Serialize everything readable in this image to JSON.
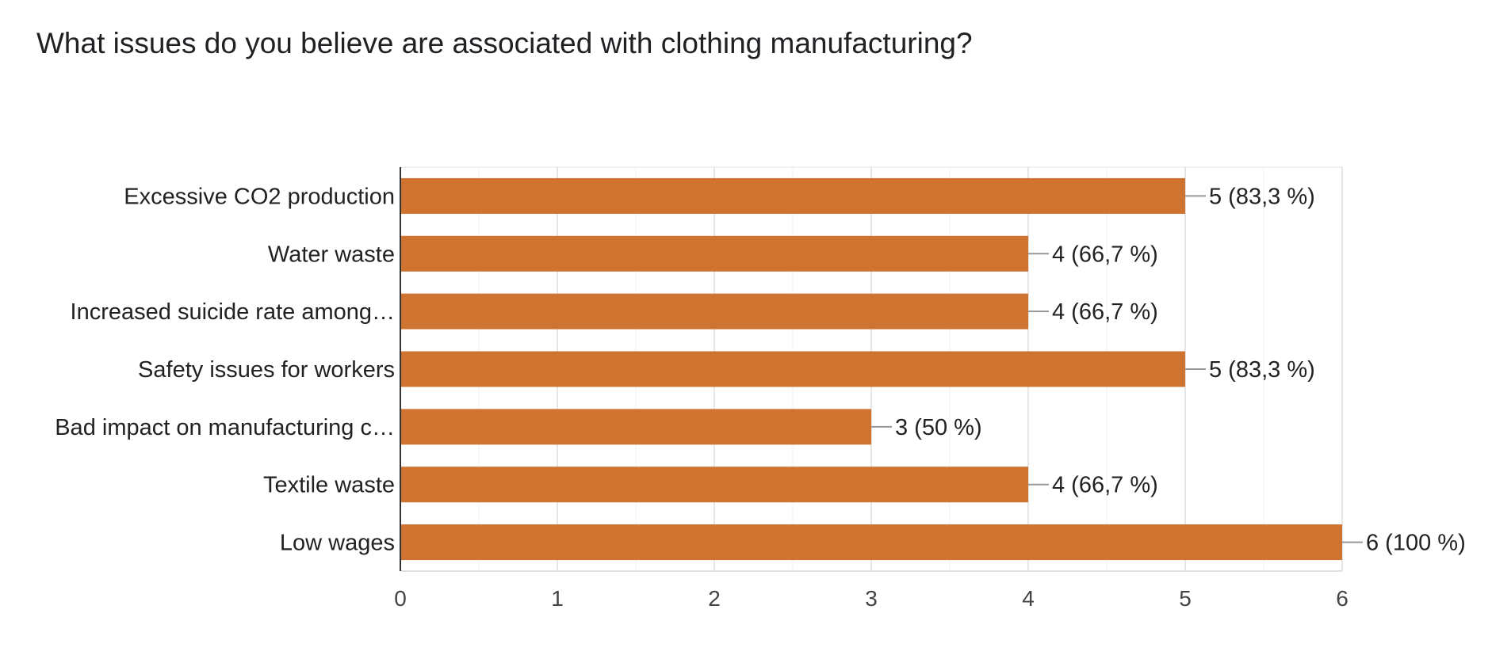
{
  "chart_data": {
    "type": "bar",
    "orientation": "horizontal",
    "title": "What issues do you believe are associated with clothing manufacturing?",
    "categories": [
      "Excessive CO2 production",
      "Water waste",
      "Increased suicide rate among…",
      "Safety issues for workers",
      "Bad impact on manufacturing c…",
      "Textile waste",
      "Low wages"
    ],
    "values": [
      5,
      4,
      4,
      5,
      3,
      4,
      6
    ],
    "data_labels": [
      "5 (83,3 %)",
      "4 (66,7 %)",
      "4 (66,7 %)",
      "5 (83,3 %)",
      "3 (50 %)",
      "4 (66,7 %)",
      "6 (100 %)"
    ],
    "xlim": [
      0,
      6
    ],
    "x_ticks": [
      "0",
      "1",
      "2",
      "3",
      "4",
      "5",
      "6"
    ],
    "grid": true,
    "bar_color": "#cf7430",
    "xlabel": "",
    "ylabel": ""
  }
}
